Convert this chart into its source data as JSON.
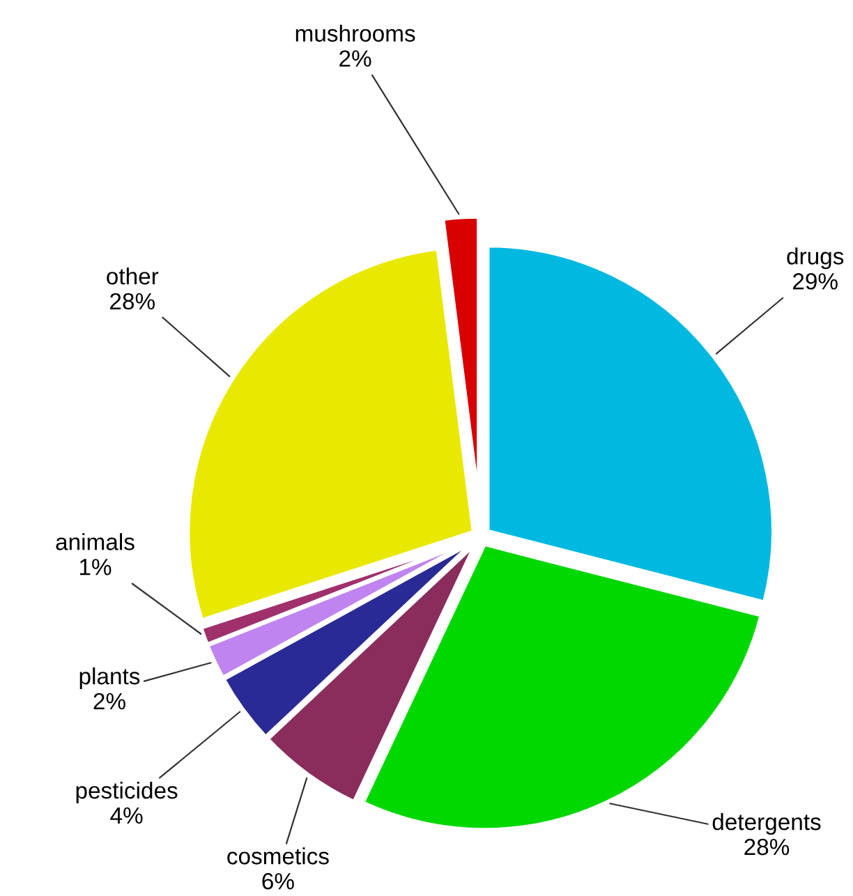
{
  "chart_data": {
    "type": "pie",
    "categories": [
      "drugs",
      "detergents",
      "cosmetics",
      "pesticides",
      "plants",
      "animals",
      "other",
      "mushrooms"
    ],
    "values": [
      29,
      28,
      6,
      4,
      2,
      1,
      28,
      2
    ],
    "value_labels": [
      "29%",
      "28%",
      "6%",
      "4%",
      "2%",
      "1%",
      "28%",
      "2%"
    ],
    "colors": [
      "#00b8e0",
      "#00d800",
      "#8a2c5c",
      "#2a2a96",
      "#c084f0",
      "#a0306c",
      "#e8e800",
      "#d80000"
    ]
  }
}
